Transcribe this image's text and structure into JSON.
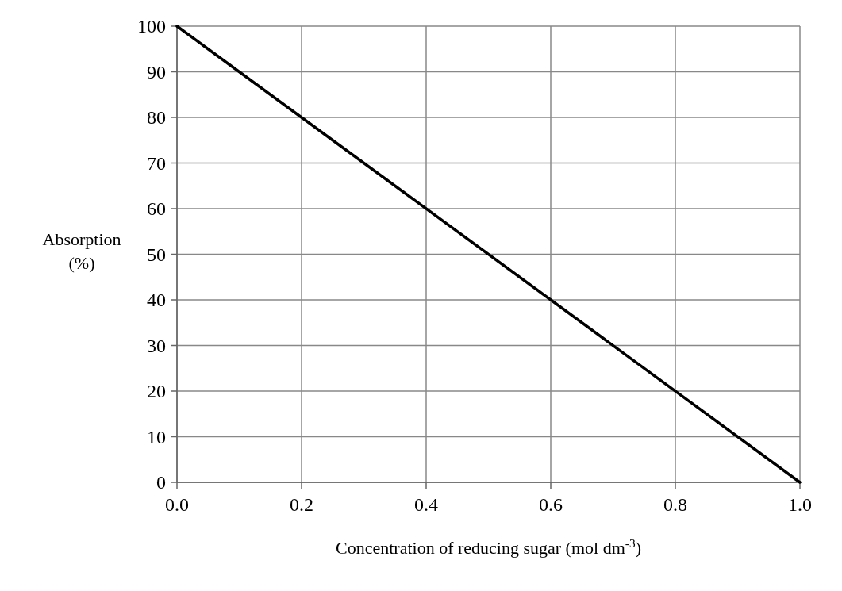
{
  "chart_data": {
    "type": "line",
    "xlabel": "Concentration of reducing sugar (mol dm$^{-3}$)",
    "ylabel": "Absorption (%)",
    "x": [
      0,
      1
    ],
    "series": [
      {
        "color": "#000000",
        "values": [
          100,
          0
        ]
      }
    ],
    "xlim": [
      0,
      1
    ],
    "xticks": [
      {
        "value": 0,
        "label": "0.0"
      },
      {
        "value": 0.2,
        "label": "0.2"
      },
      {
        "value": 0.4,
        "label": "0.4"
      },
      {
        "value": 0.6,
        "label": "0.6"
      },
      {
        "value": 0.8,
        "label": "0.8"
      },
      {
        "value": 1,
        "label": "1.0"
      }
    ],
    "ylim": [
      0,
      100
    ],
    "yticks": [
      0,
      10,
      20,
      30,
      40,
      50,
      60,
      70,
      80,
      90,
      100
    ],
    "grid": true,
    "marker": "none",
    "line_style": "solid"
  }
}
